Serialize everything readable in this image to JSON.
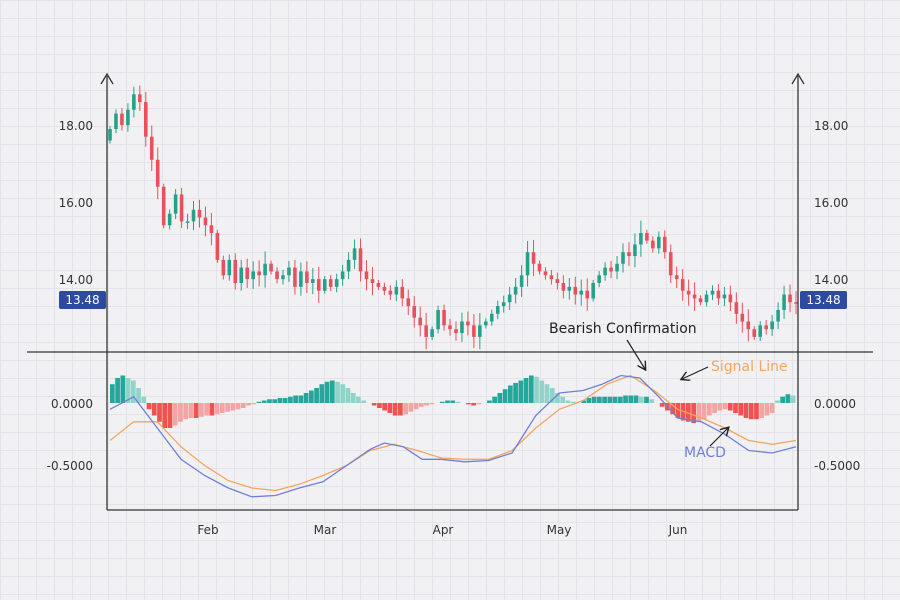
{
  "chart_data": {
    "type": "candlestick",
    "current_price": "13.48",
    "x_ticks": [
      "Feb",
      "Mar",
      "Apr",
      "May",
      "Jun"
    ],
    "price_axis": {
      "ticks": [
        "14.00",
        "16.00",
        "18.00"
      ],
      "ylim": [
        12.4,
        19.2
      ]
    },
    "macd_axis": {
      "ticks": [
        "-0.5000",
        "0.0000"
      ],
      "ylim": [
        -0.85,
        0.28
      ]
    },
    "annotations": {
      "bearish": "Bearish Confirmation",
      "signal": "Signal Line",
      "macd": "MACD"
    },
    "colors": {
      "up": "#27a08a",
      "down": "#e8505b",
      "hist_up": "#26a69a",
      "hist_up_light": "#8fd3c9",
      "hist_down": "#ef5350",
      "hist_down_light": "#f4a4a3",
      "macd": "#6f7fd6",
      "signal": "#f4a55e",
      "price_tag": "#2e4aa0"
    },
    "macd_line": [
      [
        0,
        -0.05
      ],
      [
        5,
        0.05
      ],
      [
        10,
        -0.2
      ],
      [
        15,
        -0.45
      ],
      [
        20,
        -0.58
      ],
      [
        25,
        -0.68
      ],
      [
        30,
        -0.75
      ],
      [
        35,
        -0.74
      ],
      [
        40,
        -0.68
      ],
      [
        45,
        -0.63
      ],
      [
        50,
        -0.5
      ],
      [
        55,
        -0.37
      ],
      [
        58,
        -0.32
      ],
      [
        62,
        -0.35
      ],
      [
        66,
        -0.45
      ],
      [
        70,
        -0.45
      ],
      [
        75,
        -0.47
      ],
      [
        80,
        -0.46
      ],
      [
        85,
        -0.4
      ],
      [
        90,
        -0.1
      ],
      [
        95,
        0.08
      ],
      [
        100,
        0.1
      ],
      [
        104,
        0.15
      ],
      [
        108,
        0.22
      ],
      [
        112,
        0.2
      ],
      [
        116,
        0.05
      ],
      [
        120,
        -0.12
      ],
      [
        125,
        -0.15
      ],
      [
        130,
        -0.25
      ],
      [
        135,
        -0.38
      ],
      [
        140,
        -0.4
      ],
      [
        145,
        -0.35
      ]
    ],
    "signal_line": [
      [
        0,
        -0.3
      ],
      [
        5,
        -0.15
      ],
      [
        10,
        -0.15
      ],
      [
        15,
        -0.35
      ],
      [
        20,
        -0.5
      ],
      [
        25,
        -0.62
      ],
      [
        30,
        -0.68
      ],
      [
        35,
        -0.7
      ],
      [
        40,
        -0.65
      ],
      [
        45,
        -0.58
      ],
      [
        50,
        -0.5
      ],
      [
        55,
        -0.38
      ],
      [
        60,
        -0.33
      ],
      [
        65,
        -0.38
      ],
      [
        70,
        -0.44
      ],
      [
        75,
        -0.45
      ],
      [
        80,
        -0.45
      ],
      [
        85,
        -0.38
      ],
      [
        90,
        -0.2
      ],
      [
        95,
        -0.05
      ],
      [
        100,
        0.02
      ],
      [
        105,
        0.15
      ],
      [
        110,
        0.22
      ],
      [
        115,
        0.1
      ],
      [
        120,
        -0.05
      ],
      [
        125,
        -0.12
      ],
      [
        130,
        -0.2
      ],
      [
        135,
        -0.3
      ],
      [
        140,
        -0.33
      ],
      [
        145,
        -0.3
      ]
    ],
    "histogram": [
      0.15,
      0.2,
      0.22,
      0.2,
      0.18,
      0.12,
      0.05,
      -0.05,
      -0.1,
      -0.15,
      -0.2,
      -0.2,
      -0.18,
      -0.15,
      -0.13,
      -0.12,
      -0.12,
      -0.11,
      -0.1,
      -0.1,
      -0.09,
      -0.08,
      -0.07,
      -0.06,
      -0.05,
      -0.04,
      -0.02,
      -0.01,
      0.01,
      0.02,
      0.03,
      0.03,
      0.04,
      0.04,
      0.05,
      0.06,
      0.06,
      0.08,
      0.1,
      0.12,
      0.15,
      0.17,
      0.18,
      0.17,
      0.15,
      0.12,
      0.08,
      0.05,
      0.02,
      0.0,
      -0.02,
      -0.04,
      -0.06,
      -0.08,
      -0.1,
      -0.1,
      -0.09,
      -0.07,
      -0.05,
      -0.03,
      -0.02,
      -0.01,
      0.0,
      0.01,
      0.02,
      0.02,
      0.01,
      0.0,
      -0.01,
      -0.02,
      -0.01,
      0.0,
      0.02,
      0.05,
      0.08,
      0.11,
      0.14,
      0.16,
      0.18,
      0.2,
      0.22,
      0.21,
      0.18,
      0.15,
      0.12,
      0.08,
      0.05,
      0.02,
      0.01,
      0.0,
      0.02,
      0.04,
      0.05,
      0.05,
      0.05,
      0.05,
      0.05,
      0.05,
      0.06,
      0.06,
      0.06,
      0.05,
      0.05,
      0.03,
      0.0,
      -0.03,
      -0.06,
      -0.09,
      -0.12,
      -0.14,
      -0.15,
      -0.16,
      -0.15,
      -0.13,
      -0.1,
      -0.08,
      -0.06,
      -0.05,
      -0.06,
      -0.08,
      -0.1,
      -0.12,
      -0.13,
      -0.13,
      -0.12,
      -0.1,
      -0.08,
      0.02,
      0.05,
      0.07,
      0.06
    ],
    "closes": [
      18.0,
      18.4,
      18.1,
      18.5,
      18.9,
      18.7,
      17.8,
      17.2,
      16.5,
      15.5,
      15.8,
      16.3,
      15.6,
      15.6,
      15.9,
      15.7,
      15.5,
      15.3,
      14.6,
      14.2,
      14.6,
      14.0,
      14.4,
      14.1,
      14.3,
      14.2,
      14.5,
      14.3,
      14.1,
      14.2,
      14.4,
      13.9,
      14.3,
      14.0,
      14.1,
      13.8,
      14.1,
      13.9,
      14.1,
      14.3,
      14.6,
      14.9,
      14.3,
      14.1,
      14.0,
      13.9,
      13.8,
      13.7,
      13.9,
      13.6,
      13.4,
      13.1,
      12.9,
      12.6,
      12.8,
      13.3,
      12.9,
      12.8,
      12.7,
      13.0,
      12.9,
      12.6,
      12.9,
      13.0,
      13.2,
      13.4,
      13.5,
      13.7,
      13.9,
      14.2,
      14.8,
      14.5,
      14.3,
      14.2,
      14.1,
      14.0,
      13.8,
      13.9,
      13.7,
      13.8,
      13.6,
      14.0,
      14.2,
      14.4,
      14.3,
      14.5,
      14.8,
      14.7,
      15.0,
      15.3,
      15.1,
      14.9,
      15.2,
      14.8,
      14.2,
      14.1,
      13.8,
      13.7,
      13.6,
      13.5,
      13.7,
      13.8,
      13.6,
      13.7,
      13.5,
      13.2,
      13.0,
      12.8,
      12.6,
      12.9,
      12.8,
      13.0,
      13.3,
      13.7,
      13.5,
      13.48
    ]
  }
}
